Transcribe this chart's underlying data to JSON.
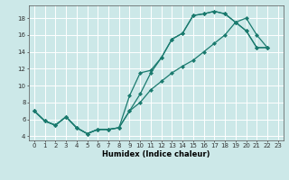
{
  "xlabel": "Humidex (Indice chaleur)",
  "bg_color": "#cce8e8",
  "grid_color": "#ffffff",
  "line_color": "#1a7a6e",
  "xlim": [
    -0.5,
    23.5
  ],
  "ylim": [
    3.5,
    19.5
  ],
  "xticks": [
    0,
    1,
    2,
    3,
    4,
    5,
    6,
    7,
    8,
    9,
    10,
    11,
    12,
    13,
    14,
    15,
    16,
    17,
    18,
    19,
    20,
    21,
    22,
    23
  ],
  "yticks": [
    4,
    6,
    8,
    10,
    12,
    14,
    16,
    18
  ],
  "curve1_x": [
    0,
    1,
    2,
    3,
    4,
    5,
    6,
    7,
    8,
    9,
    10,
    11,
    12,
    13,
    14,
    15,
    16,
    17,
    18,
    19,
    20,
    21,
    22
  ],
  "curve1_y": [
    7.0,
    5.8,
    5.3,
    6.3,
    5.0,
    4.3,
    4.8,
    4.8,
    5.0,
    7.0,
    9.0,
    11.5,
    13.3,
    15.5,
    16.2,
    18.3,
    18.5,
    18.8,
    18.5,
    17.5,
    16.5,
    14.5,
    14.5
  ],
  "curve2_x": [
    0,
    1,
    2,
    3,
    4,
    5,
    6,
    7,
    8,
    9,
    10,
    11,
    12,
    13,
    14,
    15,
    16,
    17,
    18,
    19,
    20,
    21,
    22
  ],
  "curve2_y": [
    7.0,
    5.8,
    5.3,
    6.3,
    5.0,
    4.3,
    4.8,
    4.8,
    5.0,
    8.8,
    11.5,
    11.8,
    13.3,
    15.5,
    16.2,
    18.3,
    18.5,
    18.8,
    18.5,
    17.5,
    16.5,
    14.5,
    14.5
  ],
  "curve3_x": [
    0,
    1,
    2,
    3,
    4,
    5,
    6,
    7,
    8,
    9,
    10,
    11,
    12,
    13,
    14,
    15,
    16,
    17,
    18,
    19,
    20,
    21,
    22
  ],
  "curve3_y": [
    7.0,
    5.8,
    5.3,
    6.3,
    5.0,
    4.3,
    4.8,
    4.8,
    5.0,
    7.0,
    8.0,
    9.5,
    10.5,
    11.5,
    12.3,
    13.0,
    14.0,
    15.0,
    16.0,
    17.5,
    18.0,
    16.0,
    14.5
  ],
  "marker": "D",
  "markersize": 2.0,
  "linewidth": 0.9,
  "tick_fontsize": 5.0,
  "xlabel_fontsize": 6.0
}
